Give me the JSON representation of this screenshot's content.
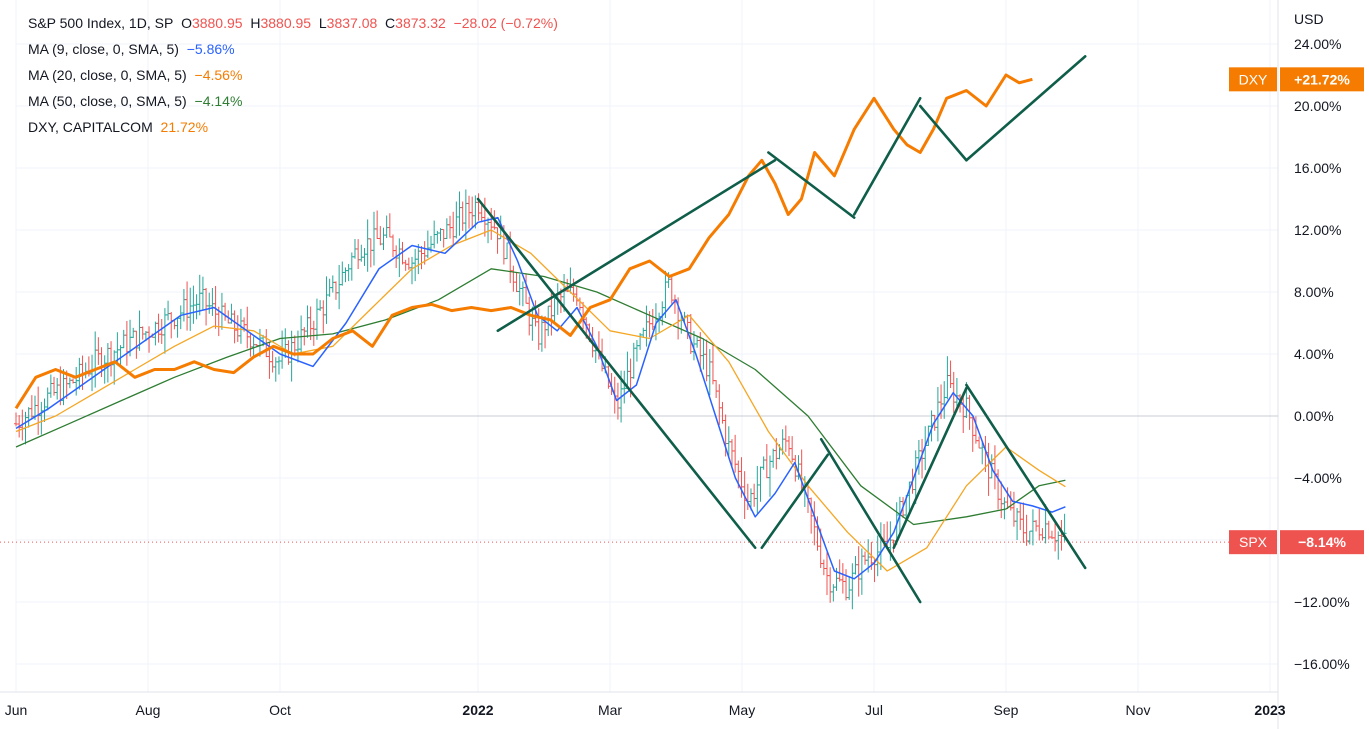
{
  "legend": {
    "symbol": "S&P 500 Index, 1D, SP",
    "o_label": "O",
    "o_value": "3880.95",
    "h_label": "H",
    "h_value": "3880.95",
    "l_label": "L",
    "l_value": "3837.08",
    "c_label": "C",
    "c_value": "3873.32",
    "change": "−28.02 (−0.72%)",
    "ma9_label": "MA (9, close, 0, SMA, 5)",
    "ma9_value": "−5.86%",
    "ma20_label": "MA (20, close, 0, SMA, 5)",
    "ma20_value": "−4.56%",
    "ma50_label": "MA (50, close, 0, SMA, 5)",
    "ma50_value": "−4.14%",
    "dxy_label": "DXY, CAPITALCOM",
    "dxy_value": "21.72%"
  },
  "colors": {
    "up": "#26a69a",
    "down": "#ef5350",
    "ma9": "#2962ff",
    "ma20": "#f5a623",
    "ma50": "#2e7d32",
    "dxy": "#f57c00",
    "trend": "#0f5e4a",
    "grid": "#f0f3fa"
  },
  "chart_data": {
    "type": "line",
    "y_unit": "%",
    "y_axis_currency": "USD",
    "y_ticks": [
      "24.00%",
      "20.00%",
      "16.00%",
      "12.00%",
      "8.00%",
      "4.00%",
      "0.00%",
      "−4.00%",
      "−8.00%",
      "−12.00%",
      "−16.00%"
    ],
    "y_tick_values": [
      24,
      20,
      16,
      12,
      8,
      4,
      0,
      -4,
      -8,
      -12,
      -16
    ],
    "ylim": [
      -17,
      25
    ],
    "x_ticks": [
      "Jun",
      "Aug",
      "Oct",
      "2022",
      "Mar",
      "May",
      "Jul",
      "Sep",
      "Nov",
      "2023"
    ],
    "x_tick_months": [
      0,
      2,
      4,
      7,
      9,
      11,
      13,
      15,
      17,
      19
    ],
    "xlim_months": [
      0,
      19.9
    ],
    "series": [
      {
        "name": "DXY",
        "last_label": "DXY",
        "last_value": "+21.72%",
        "last": 21.72,
        "x": [
          0,
          0.3,
          0.6,
          0.9,
          1.2,
          1.5,
          1.8,
          2.1,
          2.4,
          2.7,
          3.0,
          3.3,
          3.6,
          3.9,
          4.2,
          4.5,
          4.8,
          5.1,
          5.4,
          5.7,
          6.0,
          6.3,
          6.6,
          6.9,
          7.2,
          7.5,
          7.8,
          8.1,
          8.4,
          8.7,
          9.0,
          9.3,
          9.6,
          9.9,
          10.2,
          10.5,
          10.8,
          11.1,
          11.3,
          11.5,
          11.7,
          11.9,
          12.1,
          12.4,
          12.7,
          13.0,
          13.3,
          13.5,
          13.7,
          13.9,
          14.1,
          14.4,
          14.7,
          15.0,
          15.2,
          15.4
        ],
        "values": [
          0.5,
          2.5,
          3.0,
          2.5,
          3.0,
          3.5,
          2.5,
          3.0,
          3.0,
          3.5,
          3.0,
          2.8,
          3.8,
          4.5,
          4.0,
          4.0,
          5.0,
          5.5,
          4.5,
          6.5,
          7.0,
          7.2,
          6.8,
          7.0,
          6.8,
          7.0,
          6.5,
          6.2,
          5.2,
          7.0,
          7.5,
          9.5,
          10.0,
          9.0,
          9.5,
          11.5,
          13.0,
          15.5,
          16.5,
          15.0,
          13.0,
          14.0,
          17.0,
          15.5,
          18.5,
          20.5,
          18.5,
          17.5,
          17.0,
          18.5,
          20.5,
          21.0,
          20.0,
          22.0,
          21.5,
          21.72
        ]
      },
      {
        "name": "S&P 500 Index",
        "last_label": "SPX",
        "last_value": "−8.14%",
        "last": -8.14,
        "x": [
          0,
          0.4,
          0.8,
          1.2,
          1.6,
          2.0,
          2.4,
          2.8,
          3.2,
          3.6,
          4.0,
          4.4,
          4.8,
          5.2,
          5.6,
          6.0,
          6.4,
          6.8,
          7.0,
          7.3,
          7.6,
          7.9,
          8.2,
          8.5,
          8.8,
          9.1,
          9.3,
          9.6,
          9.9,
          10.2,
          10.5,
          10.8,
          11.1,
          11.4,
          11.7,
          12.0,
          12.3,
          12.6,
          12.9,
          13.2,
          13.5,
          13.8,
          14.1,
          14.4,
          14.7,
          15.0,
          15.3,
          15.6,
          15.9
        ],
        "values": [
          -0.5,
          1.0,
          2.0,
          3.5,
          4.5,
          5.5,
          6.5,
          7.5,
          6.0,
          5.0,
          3.5,
          5.5,
          8.0,
          11.0,
          11.5,
          10.0,
          11.5,
          13.0,
          13.8,
          12.0,
          8.5,
          5.0,
          7.5,
          8.0,
          4.0,
          0.5,
          3.0,
          6.0,
          8.5,
          5.0,
          3.0,
          -2.0,
          -5.5,
          -3.0,
          -1.5,
          -6.0,
          -10.5,
          -11.0,
          -9.0,
          -8.5,
          -5.0,
          -1.5,
          2.0,
          0.5,
          -3.0,
          -6.0,
          -7.5,
          -7.0,
          -8.14
        ]
      },
      {
        "name": "MA (9, close, 0, SMA, 5)",
        "x": [
          0,
          0.5,
          1.0,
          1.5,
          2.0,
          2.5,
          3.0,
          3.5,
          4.0,
          4.5,
          5.0,
          5.5,
          6.0,
          6.5,
          7.0,
          7.3,
          7.6,
          7.9,
          8.2,
          8.5,
          8.8,
          9.1,
          9.4,
          9.7,
          10.0,
          10.3,
          10.6,
          10.9,
          11.2,
          11.5,
          11.8,
          12.1,
          12.4,
          12.7,
          13.0,
          13.3,
          13.6,
          13.9,
          14.2,
          14.5,
          14.8,
          15.1,
          15.4,
          15.7,
          15.9
        ],
        "values": [
          -0.8,
          0.5,
          2.0,
          3.5,
          5.0,
          6.5,
          7.0,
          5.5,
          4.0,
          3.2,
          6.0,
          9.5,
          11.0,
          10.5,
          12.5,
          12.8,
          10.0,
          6.5,
          5.5,
          7.0,
          4.5,
          1.0,
          2.0,
          6.0,
          7.5,
          4.0,
          0.0,
          -4.0,
          -6.5,
          -5.0,
          -3.0,
          -6.5,
          -10.0,
          -10.5,
          -9.5,
          -7.5,
          -4.0,
          -0.5,
          1.5,
          0.0,
          -3.5,
          -5.5,
          -5.8,
          -6.2,
          -5.86
        ]
      },
      {
        "name": "MA (20, close, 0, SMA, 5)",
        "x": [
          0,
          0.6,
          1.2,
          1.8,
          2.4,
          3.0,
          3.6,
          4.2,
          4.8,
          5.4,
          6.0,
          6.6,
          7.2,
          7.8,
          8.4,
          9.0,
          9.6,
          10.2,
          10.8,
          11.4,
          12.0,
          12.6,
          13.2,
          13.8,
          14.4,
          15.0,
          15.5,
          15.9
        ],
        "values": [
          -1.0,
          0.0,
          1.5,
          3.0,
          4.5,
          5.8,
          5.5,
          4.0,
          4.5,
          7.0,
          9.5,
          11.0,
          12.0,
          10.5,
          8.0,
          5.5,
          5.0,
          6.5,
          3.5,
          -1.0,
          -4.5,
          -7.5,
          -10.0,
          -8.5,
          -4.5,
          -2.0,
          -3.5,
          -4.56
        ]
      },
      {
        "name": "MA (50, close, 0, SMA, 5)",
        "x": [
          0,
          0.8,
          1.6,
          2.4,
          3.2,
          4.0,
          4.8,
          5.6,
          6.4,
          7.2,
          8.0,
          8.8,
          9.6,
          10.4,
          11.2,
          12.0,
          12.8,
          13.6,
          14.4,
          15.0,
          15.5,
          15.9
        ],
        "values": [
          -2.0,
          -0.5,
          1.0,
          2.5,
          3.8,
          5.0,
          5.3,
          6.2,
          7.5,
          9.5,
          9.0,
          8.0,
          6.5,
          5.0,
          3.0,
          0.0,
          -4.5,
          -7.0,
          -6.5,
          -6.0,
          -4.5,
          -4.14
        ]
      }
    ],
    "trendlines": [
      {
        "x": [
          7.0,
          11.2
        ],
        "values": [
          14.0,
          -8.5
        ]
      },
      {
        "x": [
          7.3,
          11.5
        ],
        "values": [
          5.5,
          16.5
        ]
      },
      {
        "x": [
          11.4,
          12.7
        ],
        "values": [
          17.0,
          12.8
        ]
      },
      {
        "x": [
          12.7,
          13.7
        ],
        "values": [
          13.0,
          20.5
        ]
      },
      {
        "x": [
          13.7,
          14.4
        ],
        "values": [
          20.0,
          16.5
        ]
      },
      {
        "x": [
          14.4,
          16.2
        ],
        "values": [
          16.5,
          23.2
        ]
      },
      {
        "x": [
          11.3,
          12.3
        ],
        "values": [
          -8.5,
          -2.5
        ]
      },
      {
        "x": [
          12.2,
          13.7
        ],
        "values": [
          -1.5,
          -12.0
        ]
      },
      {
        "x": [
          13.3,
          14.4
        ],
        "values": [
          -8.5,
          1.8
        ]
      },
      {
        "x": [
          14.4,
          16.2
        ],
        "values": [
          2.0,
          -9.8
        ]
      }
    ]
  }
}
